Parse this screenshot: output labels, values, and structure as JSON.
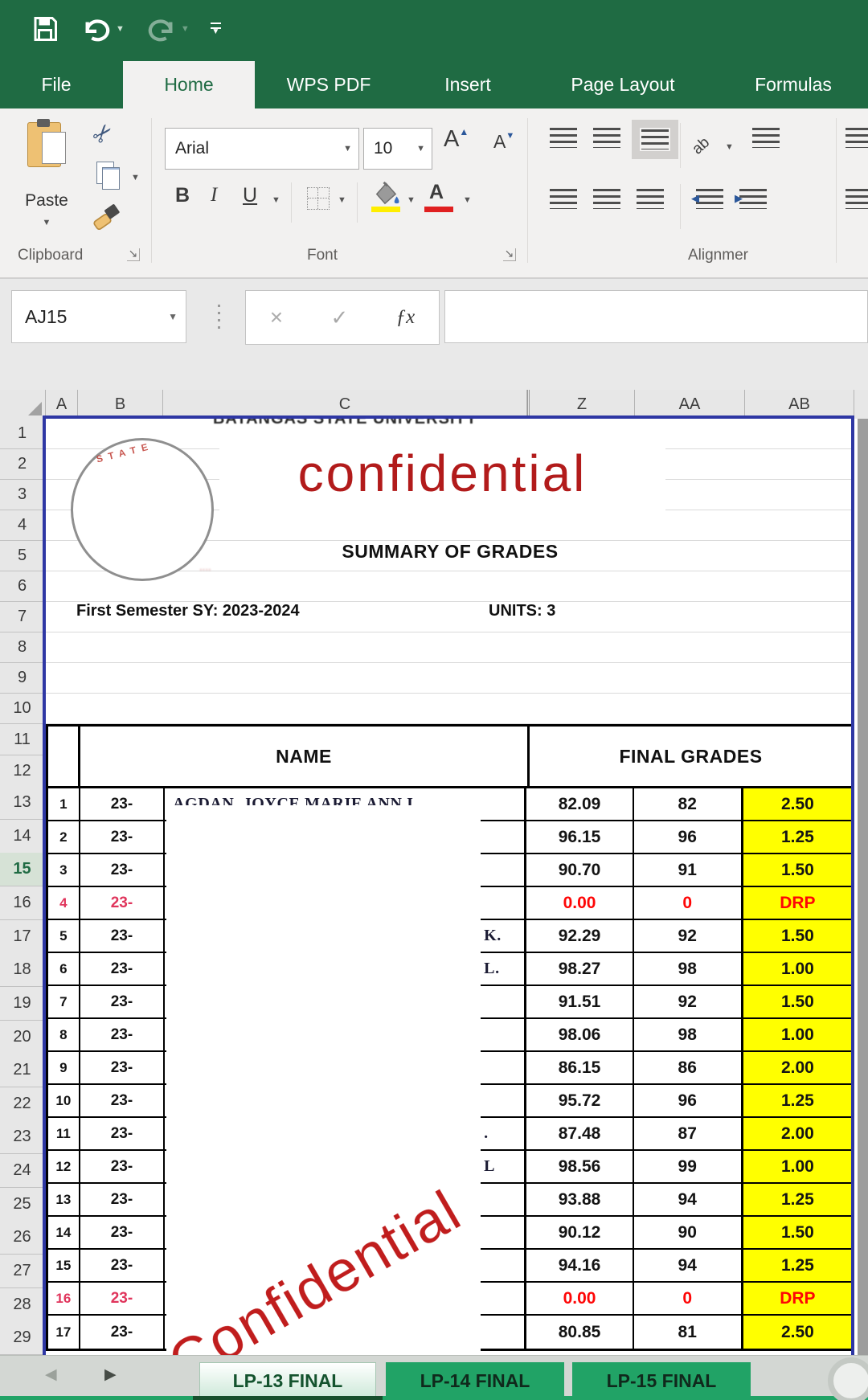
{
  "window": {
    "quick_access": [
      "save",
      "undo",
      "redo",
      "customize-toolbar"
    ]
  },
  "ribbon_tabs": [
    {
      "label": "File"
    },
    {
      "label": "Home",
      "active": true
    },
    {
      "label": "WPS PDF"
    },
    {
      "label": "Insert"
    },
    {
      "label": "Page Layout"
    },
    {
      "label": "Formulas"
    }
  ],
  "ribbon": {
    "clipboard": {
      "label": "Clipboard",
      "paste_label": "Paste"
    },
    "font": {
      "label": "Font",
      "font_name": "Arial",
      "font_size": "10",
      "bold": "B",
      "italic": "I",
      "underline": "U"
    },
    "alignment": {
      "label": "Alignmer",
      "orientation_glyph": "ab"
    }
  },
  "formula_bar": {
    "name_box": "AJ15",
    "fx_label": "ƒx",
    "value": ""
  },
  "grid": {
    "column_headers": [
      "A",
      "B",
      "C",
      "Z",
      "AA",
      "AB"
    ],
    "visible_rows": 29,
    "active_row": 15
  },
  "document": {
    "university_header": "BATANGAS STATE UNIVERSITY",
    "watermark_top": "confidential",
    "watermark_diagonal": "Confidential",
    "seal_arc_text": "STATE",
    "summary_title": "SUMMARY OF GRADES",
    "semester_line": "First Semester  SY: 2023-2024",
    "units_line": "UNITS: 3",
    "name_header": "NAME",
    "final_grades_header": "FINAL GRADES"
  },
  "students": [
    {
      "no": "1",
      "id": "23-",
      "name": "AGDAN, JOYCE MARIE ANN I.",
      "raw": "82.09",
      "rounded": "82",
      "grade": "2.50",
      "dropped": false
    },
    {
      "no": "2",
      "id": "23-",
      "raw": "96.15",
      "rounded": "96",
      "grade": "1.25",
      "dropped": false
    },
    {
      "no": "3",
      "id": "23-",
      "raw": "90.70",
      "rounded": "91",
      "grade": "1.50",
      "dropped": false
    },
    {
      "no": "4",
      "id": "23-",
      "raw": "0.00",
      "rounded": "0",
      "grade": "DRP",
      "dropped": true
    },
    {
      "no": "5",
      "id": "23-",
      "name_tail": "K.",
      "raw": "92.29",
      "rounded": "92",
      "grade": "1.50",
      "dropped": false
    },
    {
      "no": "6",
      "id": "23-",
      "name_tail": "L.",
      "raw": "98.27",
      "rounded": "98",
      "grade": "1.00",
      "dropped": false
    },
    {
      "no": "7",
      "id": "23-",
      "raw": "91.51",
      "rounded": "92",
      "grade": "1.50",
      "dropped": false
    },
    {
      "no": "8",
      "id": "23-",
      "raw": "98.06",
      "rounded": "98",
      "grade": "1.00",
      "dropped": false
    },
    {
      "no": "9",
      "id": "23-",
      "raw": "86.15",
      "rounded": "86",
      "grade": "2.00",
      "dropped": false
    },
    {
      "no": "10",
      "id": "23-",
      "raw": "95.72",
      "rounded": "96",
      "grade": "1.25",
      "dropped": false
    },
    {
      "no": "11",
      "id": "23-",
      "name_tail": ".",
      "raw": "87.48",
      "rounded": "87",
      "grade": "2.00",
      "dropped": false
    },
    {
      "no": "12",
      "id": "23-",
      "name_tail": "L",
      "raw": "98.56",
      "rounded": "99",
      "grade": "1.00",
      "dropped": false
    },
    {
      "no": "13",
      "id": "23-",
      "raw": "93.88",
      "rounded": "94",
      "grade": "1.25",
      "dropped": false
    },
    {
      "no": "14",
      "id": "23-",
      "raw": "90.12",
      "rounded": "90",
      "grade": "1.50",
      "dropped": false
    },
    {
      "no": "15",
      "id": "23-",
      "raw": "94.16",
      "rounded": "94",
      "grade": "1.25",
      "dropped": false
    },
    {
      "no": "16",
      "id": "23-",
      "raw": "0.00",
      "rounded": "0",
      "grade": "DRP",
      "dropped": true
    },
    {
      "no": "17",
      "id": "23-",
      "raw": "80.85",
      "rounded": "81",
      "grade": "2.50",
      "dropped": false
    }
  ],
  "sheet_tabs": [
    {
      "label": "LP-13 FINAL",
      "active": true
    },
    {
      "label": "LP-14 FINAL",
      "active": false
    },
    {
      "label": "LP-15 FINAL",
      "active": false
    }
  ],
  "colors": {
    "excel_green": "#1f6b43",
    "sheet_tab_green": "#21a366",
    "highlight_yellow": "#ffff00",
    "drp_red": "#fe0606",
    "dropped_row_red": "#e0355c",
    "selection_blue": "#2e37a4",
    "watermark_red": "#c01d1d"
  }
}
